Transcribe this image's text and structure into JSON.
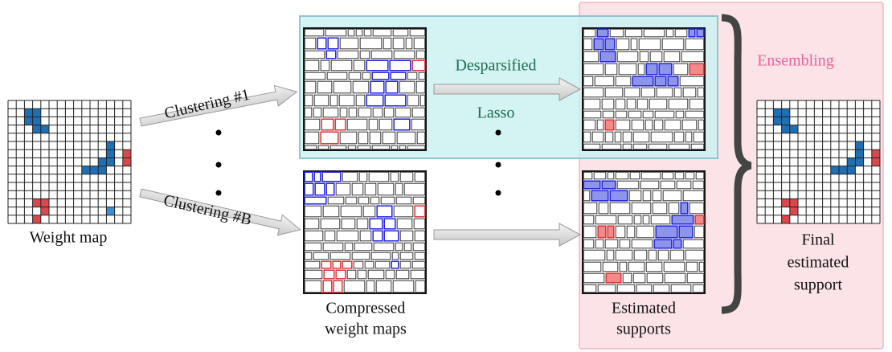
{
  "labels": {
    "weight_map": "Weight map",
    "clustering_1": "Clustering #1",
    "clustering_b": "Clustering #B",
    "desparsified": "Desparsified",
    "lasso": "Lasso",
    "compressed": [
      "Compressed",
      "weight maps"
    ],
    "estimated": [
      "Estimated",
      "supports"
    ],
    "ensembling": "Ensembling",
    "final": [
      "Final",
      "estimated",
      "support"
    ]
  }
}
